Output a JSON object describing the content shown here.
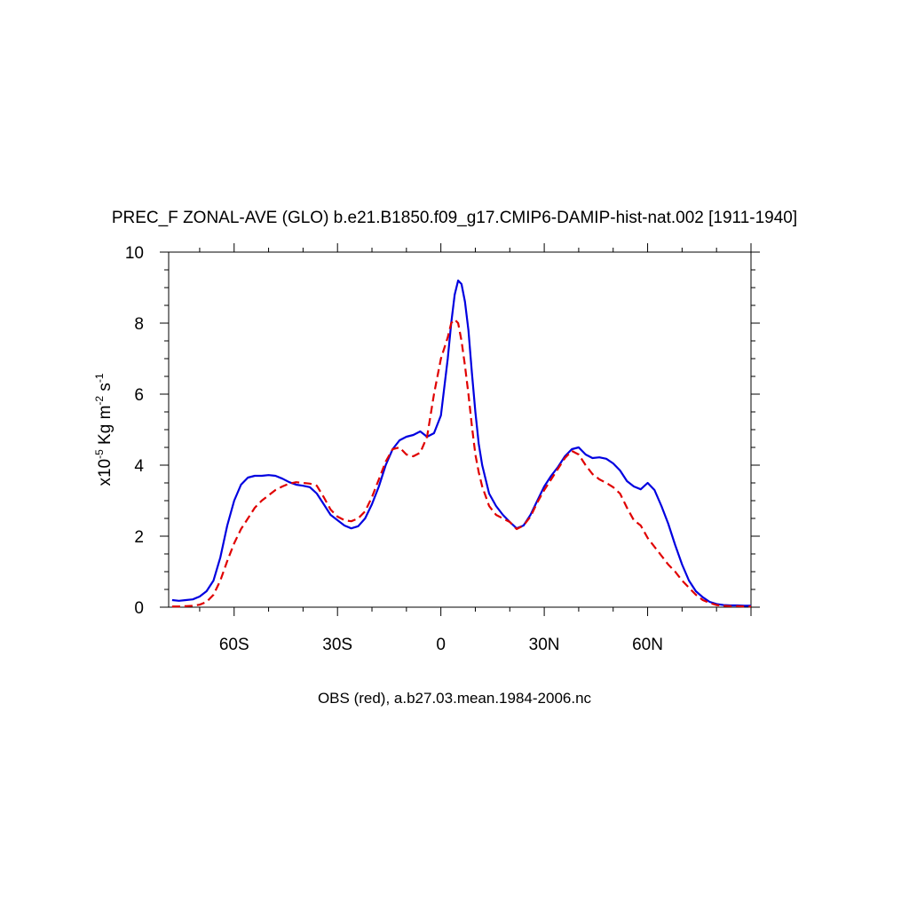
{
  "chart_data": {
    "type": "line",
    "title": "PREC_F ZONAL-AVE (GLO) b.e21.B1850.f09_g17.CMIP6-DAMIP-hist-nat.002 [1911-1940]",
    "ylabel": {
      "prefix": "x10",
      "exp1": "-5",
      "unit1": " Kg m",
      "exp2": "-2",
      "unit2": " s",
      "exp3": "-1"
    },
    "footer": "OBS (red), a.b27.03.mean.1984-2006.nc",
    "xlim": [
      -79,
      90
    ],
    "ylim": [
      0,
      10
    ],
    "x_ticks": [
      {
        "value": -60,
        "label": "60S"
      },
      {
        "value": -30,
        "label": "30S"
      },
      {
        "value": 0,
        "label": "0"
      },
      {
        "value": 30,
        "label": "30N"
      },
      {
        "value": 60,
        "label": "60N"
      }
    ],
    "y_ticks": [
      {
        "value": 0,
        "label": "0"
      },
      {
        "value": 2,
        "label": "2"
      },
      {
        "value": 4,
        "label": "4"
      },
      {
        "value": 6,
        "label": "6"
      },
      {
        "value": 8,
        "label": "8"
      },
      {
        "value": 10,
        "label": "10"
      }
    ],
    "grid": false,
    "series": [
      {
        "color": "#0000e0",
        "dash": "solid",
        "x": [
          -78,
          -76,
          -74,
          -72,
          -70,
          -68,
          -66,
          -64,
          -62,
          -60,
          -58,
          -56,
          -54,
          -52,
          -50,
          -48,
          -46,
          -44,
          -42,
          -40,
          -38,
          -36,
          -34,
          -32,
          -30,
          -28,
          -26,
          -24,
          -22,
          -20,
          -18,
          -16,
          -14,
          -12,
          -10,
          -8,
          -6,
          -4,
          -2,
          0,
          2,
          3,
          4,
          5,
          6,
          7,
          8,
          9,
          10,
          11,
          12,
          14,
          16,
          18,
          20,
          22,
          24,
          26,
          28,
          30,
          32,
          34,
          36,
          38,
          40,
          42,
          44,
          46,
          48,
          50,
          52,
          54,
          56,
          58,
          60,
          62,
          64,
          66,
          68,
          70,
          72,
          74,
          76,
          78,
          80,
          82,
          84,
          86,
          88,
          90
        ],
        "y": [
          0.2,
          0.18,
          0.2,
          0.22,
          0.3,
          0.45,
          0.75,
          1.4,
          2.3,
          3.0,
          3.45,
          3.65,
          3.7,
          3.7,
          3.72,
          3.7,
          3.62,
          3.52,
          3.45,
          3.42,
          3.38,
          3.2,
          2.9,
          2.6,
          2.45,
          2.3,
          2.22,
          2.28,
          2.5,
          2.9,
          3.4,
          4.0,
          4.45,
          4.7,
          4.8,
          4.85,
          4.95,
          4.8,
          4.9,
          5.4,
          7.0,
          8.0,
          8.8,
          9.2,
          9.1,
          8.6,
          7.8,
          6.6,
          5.5,
          4.6,
          4.0,
          3.2,
          2.85,
          2.6,
          2.4,
          2.22,
          2.3,
          2.6,
          3.0,
          3.4,
          3.7,
          3.95,
          4.25,
          4.45,
          4.5,
          4.3,
          4.2,
          4.22,
          4.18,
          4.05,
          3.85,
          3.55,
          3.4,
          3.32,
          3.5,
          3.3,
          2.85,
          2.35,
          1.75,
          1.2,
          0.75,
          0.45,
          0.28,
          0.15,
          0.09,
          0.06,
          0.05,
          0.05,
          0.04,
          0.04
        ]
      },
      {
        "color": "#e00000",
        "dash": "dashed",
        "x": [
          -78,
          -76,
          -74,
          -72,
          -70,
          -68,
          -66,
          -64,
          -62,
          -60,
          -58,
          -56,
          -54,
          -52,
          -50,
          -48,
          -46,
          -44,
          -42,
          -40,
          -38,
          -36,
          -34,
          -32,
          -30,
          -28,
          -26,
          -24,
          -22,
          -20,
          -18,
          -16,
          -14,
          -12,
          -10,
          -8,
          -6,
          -4,
          -2,
          0,
          2,
          3,
          4,
          5,
          6,
          7,
          8,
          9,
          10,
          11,
          12,
          14,
          16,
          18,
          20,
          22,
          24,
          26,
          28,
          30,
          32,
          34,
          36,
          38,
          40,
          42,
          44,
          46,
          48,
          50,
          52,
          54,
          56,
          58,
          60,
          62,
          64,
          66,
          68,
          70,
          72,
          74,
          76,
          78,
          80,
          82,
          84,
          86,
          88,
          90
        ],
        "y": [
          0.02,
          0.02,
          0.03,
          0.04,
          0.07,
          0.15,
          0.35,
          0.75,
          1.3,
          1.8,
          2.2,
          2.5,
          2.8,
          3.0,
          3.15,
          3.3,
          3.4,
          3.48,
          3.52,
          3.5,
          3.48,
          3.42,
          3.1,
          2.75,
          2.55,
          2.45,
          2.42,
          2.5,
          2.7,
          3.1,
          3.6,
          4.1,
          4.45,
          4.5,
          4.3,
          4.25,
          4.35,
          4.8,
          6.0,
          7.0,
          7.6,
          8.0,
          8.1,
          8.0,
          7.5,
          6.8,
          6.0,
          5.1,
          4.3,
          3.8,
          3.4,
          2.85,
          2.6,
          2.5,
          2.4,
          2.2,
          2.3,
          2.55,
          2.95,
          3.3,
          3.6,
          3.9,
          4.2,
          4.4,
          4.3,
          4.0,
          3.75,
          3.6,
          3.5,
          3.38,
          3.2,
          2.8,
          2.45,
          2.3,
          1.95,
          1.7,
          1.45,
          1.2,
          1.0,
          0.75,
          0.55,
          0.35,
          0.2,
          0.12,
          0.06,
          0.04,
          0.03,
          0.03,
          0.02,
          0.02
        ]
      }
    ]
  }
}
